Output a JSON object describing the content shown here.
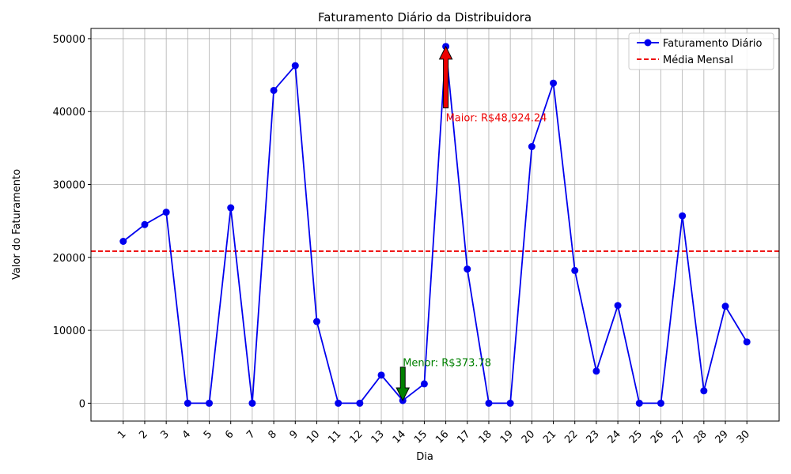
{
  "chart_data": {
    "type": "line",
    "title": "Faturamento Diário da Distribuidora",
    "xlabel": "Dia",
    "ylabel": "Valor do Faturamento",
    "x": [
      1,
      2,
      3,
      4,
      5,
      6,
      7,
      8,
      9,
      10,
      11,
      12,
      13,
      14,
      15,
      16,
      17,
      18,
      19,
      20,
      21,
      22,
      23,
      24,
      25,
      26,
      27,
      28,
      29,
      30
    ],
    "xlim": [
      -0.5,
      31.5
    ],
    "ylim": [
      -2450,
      51400
    ],
    "yticks": [
      0,
      10000,
      20000,
      30000,
      40000,
      50000
    ],
    "grid": true,
    "series": [
      {
        "name": "Faturamento Diário",
        "color": "#0000ee",
        "values": [
          22200,
          24500,
          26200,
          0,
          0,
          26800,
          0,
          42900,
          46300,
          11200,
          0,
          0,
          3850,
          373.78,
          2650,
          48924.24,
          18400,
          0,
          0,
          35200,
          43900,
          18200,
          4400,
          13400,
          0,
          0,
          25700,
          1700,
          13300,
          8400
        ]
      }
    ],
    "average_line": {
      "name": "Média Mensal",
      "color": "#ee0000",
      "value": 20850
    },
    "legend_position": "top-right",
    "annotations": [
      {
        "text": "Maior: R$48,924.24",
        "x": 16,
        "y": 48924.24,
        "text_anchor_y": 39200,
        "color": "#ee0000",
        "direction": "up"
      },
      {
        "text": "Menor: R$373.78",
        "x": 14,
        "y": 373.78,
        "text_anchor_y": 5600,
        "color": "#008000",
        "direction": "down"
      }
    ]
  }
}
